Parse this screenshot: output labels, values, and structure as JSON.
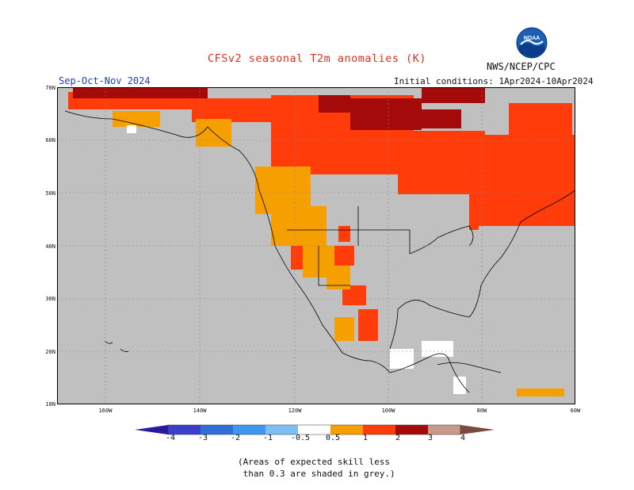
{
  "title": "CFSv2 seasonal T2m anomalies (K)",
  "agency": "NWS/NCEP/CPC",
  "logo": {
    "icon": "noaa-logo",
    "text": "NOAA"
  },
  "season": "Sep-Oct-Nov 2024",
  "initial_conditions": "Initial conditions: 1Apr2024-10Apr2024",
  "note_line1": "(Areas of expected skill less",
  "note_line2": " than 0.3 are shaded in grey.)",
  "map": {
    "region": "North America",
    "lat_range": [
      10,
      70
    ],
    "lon_range": [
      -190,
      -60
    ],
    "lat_labels": [
      "70N",
      "60N",
      "50N",
      "40N",
      "30N",
      "20N",
      "10N"
    ],
    "lon_labels": [
      "160W",
      "140W",
      "120W",
      "100W",
      "80W",
      "60W"
    ],
    "colors": {
      "grey": "#c0c0c0",
      "ocean_border": "#000000",
      "gridline": "#888888"
    }
  },
  "colorbar": {
    "tick_labels": [
      "-4",
      "-3",
      "-2",
      "-1",
      "-0.5",
      "0.5",
      "1",
      "2",
      "3",
      "4"
    ],
    "bins": [
      {
        "color": "#2a1aa0"
      },
      {
        "color": "#3a3fcc"
      },
      {
        "color": "#2f6fd8"
      },
      {
        "color": "#3d97ee"
      },
      {
        "color": "#7dbff5"
      },
      {
        "color": "#ffffff"
      },
      {
        "color": "#f5a000"
      },
      {
        "color": "#ff3c0a"
      },
      {
        "color": "#a50a0a"
      },
      {
        "color": "#c79a8a"
      },
      {
        "color": "#7a4a40"
      }
    ]
  }
}
